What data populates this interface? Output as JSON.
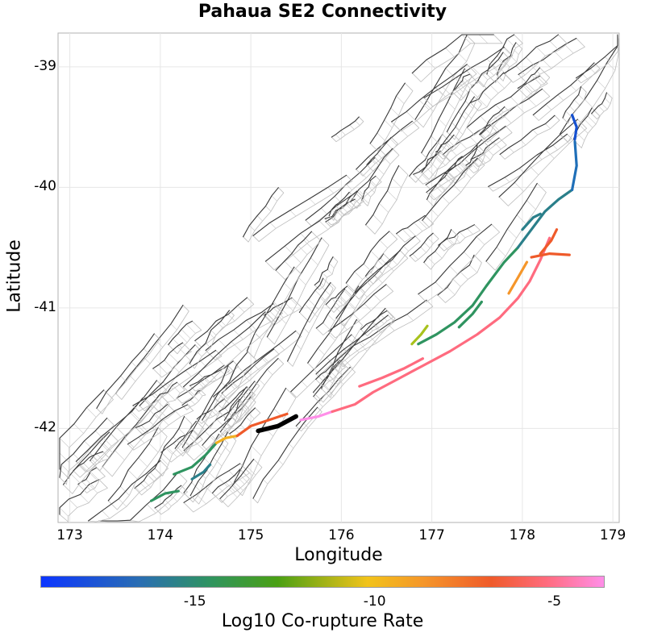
{
  "title": "Pahaua SE2 Connectivity",
  "xlabel": "Longitude",
  "ylabel": "Latitude",
  "colorbar_label": "Log10 Co-rupture Rate",
  "chart_data": {
    "type": "map",
    "title": "Pahaua SE2 Connectivity",
    "xlabel": "Longitude",
    "ylabel": "Latitude",
    "x_ticks": [
      "173",
      "174",
      "175",
      "176",
      "177",
      "178",
      "179"
    ],
    "y_ticks": [
      "-39",
      "-40",
      "-41",
      "-42"
    ],
    "xlim": [
      172.87,
      179.07
    ],
    "ylim": [
      -42.78,
      -38.72
    ],
    "grid": true,
    "colorbar": {
      "label": "Log10 Co-rupture Rate",
      "ticks": [
        "-15",
        "-10",
        "-5"
      ],
      "range": [
        -19.3,
        -3.6
      ],
      "colors": [
        "#0c35ff",
        "#2a6fb0",
        "#2f9460",
        "#4aa014",
        "#f2c31a",
        "#f5962a",
        "#ef5a2a",
        "#ff6b7f",
        "#ff8ee8"
      ]
    },
    "target_fault": {
      "name": "Pahaua SE2",
      "color": "#000000",
      "path": [
        [
          175.08,
          -42.02
        ],
        [
          175.3,
          -41.98
        ],
        [
          175.5,
          -41.9
        ]
      ]
    },
    "colored_faults": [
      {
        "color": "#2f9460",
        "path": [
          [
            173.9,
            -42.6
          ],
          [
            174.05,
            -42.54
          ],
          [
            174.2,
            -42.52
          ]
        ]
      },
      {
        "color": "#2f9460",
        "path": [
          [
            174.15,
            -42.38
          ],
          [
            174.35,
            -42.32
          ],
          [
            174.5,
            -42.22
          ],
          [
            174.62,
            -42.12
          ]
        ]
      },
      {
        "color": "#2a7f8a",
        "path": [
          [
            174.35,
            -42.42
          ],
          [
            174.48,
            -42.36
          ],
          [
            174.55,
            -42.3
          ]
        ]
      },
      {
        "color": "#f2b020",
        "path": [
          [
            174.62,
            -42.12
          ],
          [
            174.72,
            -42.08
          ],
          [
            174.85,
            -42.06
          ]
        ]
      },
      {
        "color": "#ef5a2a",
        "path": [
          [
            174.85,
            -42.06
          ],
          [
            175.0,
            -41.98
          ],
          [
            175.2,
            -41.93
          ],
          [
            175.4,
            -41.88
          ]
        ]
      },
      {
        "color": "#ff8ee8",
        "path": [
          [
            175.55,
            -41.93
          ],
          [
            175.75,
            -41.9
          ],
          [
            175.9,
            -41.86
          ]
        ]
      },
      {
        "color": "#ff6b7f",
        "path": [
          [
            175.9,
            -41.86
          ],
          [
            176.15,
            -41.8
          ],
          [
            176.35,
            -41.7
          ],
          [
            176.6,
            -41.6
          ],
          [
            176.9,
            -41.48
          ],
          [
            177.2,
            -41.36
          ],
          [
            177.5,
            -41.22
          ],
          [
            177.75,
            -41.08
          ],
          [
            177.95,
            -40.92
          ],
          [
            178.08,
            -40.78
          ],
          [
            178.2,
            -40.6
          ],
          [
            178.3,
            -40.42
          ]
        ]
      },
      {
        "color": "#ff6b7f",
        "path": [
          [
            176.2,
            -41.65
          ],
          [
            176.45,
            -41.58
          ],
          [
            176.7,
            -41.5
          ],
          [
            176.9,
            -41.42
          ]
        ]
      },
      {
        "color": "#ef5a2a",
        "path": [
          [
            178.1,
            -40.58
          ],
          [
            178.3,
            -40.55
          ],
          [
            178.52,
            -40.56
          ]
        ]
      },
      {
        "color": "#ef5a2a",
        "path": [
          [
            178.2,
            -40.55
          ],
          [
            178.32,
            -40.44
          ],
          [
            178.38,
            -40.35
          ]
        ]
      },
      {
        "color": "#f5962a",
        "path": [
          [
            177.85,
            -40.88
          ],
          [
            177.95,
            -40.75
          ],
          [
            178.05,
            -40.62
          ]
        ]
      },
      {
        "color": "#2f9460",
        "path": [
          [
            176.85,
            -41.3
          ],
          [
            177.05,
            -41.22
          ],
          [
            177.25,
            -41.12
          ],
          [
            177.45,
            -40.98
          ],
          [
            177.6,
            -40.82
          ],
          [
            177.8,
            -40.62
          ],
          [
            177.95,
            -40.5
          ]
        ]
      },
      {
        "color": "#2f9460",
        "path": [
          [
            177.3,
            -41.16
          ],
          [
            177.45,
            -41.05
          ],
          [
            177.55,
            -40.95
          ]
        ]
      },
      {
        "color": "#a8c21c",
        "path": [
          [
            176.78,
            -41.3
          ],
          [
            176.88,
            -41.22
          ],
          [
            176.95,
            -41.15
          ]
        ]
      },
      {
        "color": "#2a7f8a",
        "path": [
          [
            177.95,
            -40.5
          ],
          [
            178.1,
            -40.35
          ],
          [
            178.25,
            -40.2
          ],
          [
            178.4,
            -40.1
          ],
          [
            178.55,
            -40.02
          ]
        ]
      },
      {
        "color": "#2a7f8a",
        "path": [
          [
            178.0,
            -40.35
          ],
          [
            178.12,
            -40.25
          ],
          [
            178.2,
            -40.22
          ]
        ]
      },
      {
        "color": "#1f6fb8",
        "path": [
          [
            178.55,
            -40.02
          ],
          [
            178.6,
            -39.82
          ],
          [
            178.58,
            -39.62
          ]
        ]
      },
      {
        "color": "#1550d0",
        "path": [
          [
            178.55,
            -39.4
          ],
          [
            178.6,
            -39.5
          ],
          [
            178.58,
            -39.6
          ]
        ]
      }
    ]
  }
}
